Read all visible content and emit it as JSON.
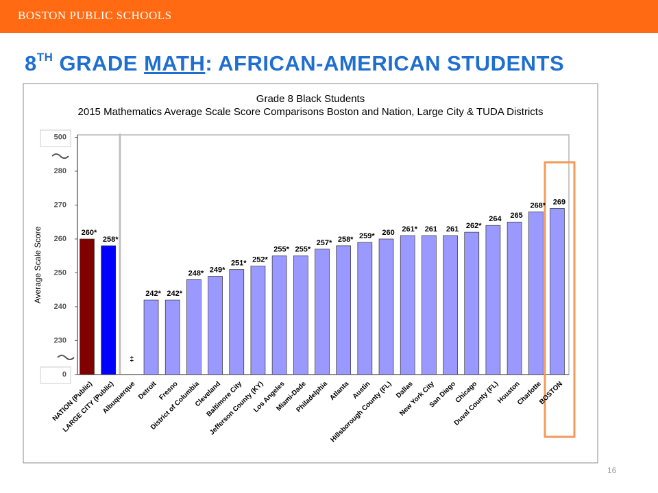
{
  "header": {
    "text": "BOSTON PUBLIC SCHOOLS"
  },
  "slide_title": {
    "number": "8",
    "superscript": "TH",
    "before": " GRADE ",
    "underlined": "MATH",
    "after": ": AFRICAN-AMERICAN STUDENTS"
  },
  "page_number": "16",
  "chart_data": {
    "type": "bar",
    "title": [
      "Grade 8 Black Students",
      "2015 Mathematics Average Scale Score Comparisons Boston and Nation, Large City & TUDA Districts"
    ],
    "y_label": "Average Scale Score",
    "categories": [
      "NATION (Public)",
      "LARGE CITY (Public)",
      "Albuquerque",
      "Detroit",
      "Fresno",
      "District of Columbia",
      "Cleveland",
      "Baltimore City",
      "Jefferson County (KY)",
      "Los Angeles",
      "Miami-Dade",
      "Philadelphia",
      "Atlanta",
      "Austin",
      "Hillsborough County (FL)",
      "Dallas",
      "New York City",
      "San Diego",
      "Chicago",
      "Duval County (FL)",
      "Houston",
      "Charlotte",
      "BOSTON"
    ],
    "values": [
      260,
      258,
      null,
      242,
      242,
      248,
      249,
      251,
      252,
      255,
      255,
      257,
      258,
      259,
      260,
      261,
      261,
      261,
      262,
      264,
      265,
      268,
      269
    ],
    "value_labels": [
      "260*",
      "258*",
      "‡",
      "242*",
      "242*",
      "248*",
      "249*",
      "251*",
      "252*",
      "255*",
      "255*",
      "257*",
      "258*",
      "259*",
      "260",
      "261*",
      "261",
      "261",
      "262*",
      "264",
      "265",
      "268*",
      "269"
    ],
    "colors": [
      "#800000",
      "#0000ff",
      "#9999ff",
      "#9999ff",
      "#9999ff",
      "#9999ff",
      "#9999ff",
      "#9999ff",
      "#9999ff",
      "#9999ff",
      "#9999ff",
      "#9999ff",
      "#9999ff",
      "#9999ff",
      "#9999ff",
      "#9999ff",
      "#9999ff",
      "#9999ff",
      "#9999ff",
      "#9999ff",
      "#9999ff",
      "#9999ff",
      "#9999ff"
    ],
    "ylim": [
      0,
      500
    ],
    "yticks": [
      0,
      230,
      240,
      250,
      260,
      270,
      280,
      500
    ],
    "grid": false
  }
}
